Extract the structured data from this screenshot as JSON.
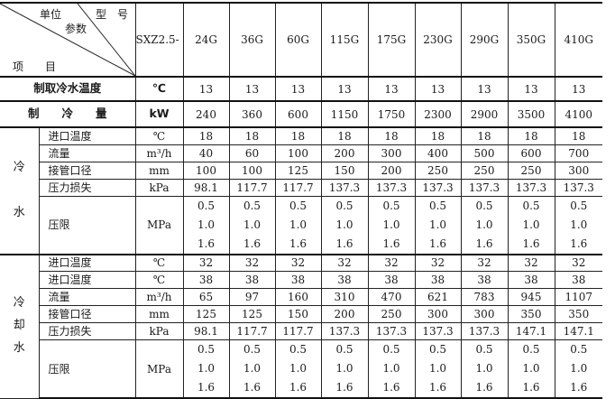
{
  "header": {
    "unit_label": "单位",
    "model_label": "型　号",
    "param_label": "参数",
    "item_label": "项　　目",
    "series_prefix": "SXZ2.5-",
    "models": [
      "24G",
      "36G",
      "60G",
      "115G",
      "175G",
      "230G",
      "290G",
      "350G",
      "410G"
    ]
  },
  "rows_top": [
    {
      "param": "制取冷水温度",
      "unit": "℃",
      "values": [
        "13",
        "13",
        "13",
        "13",
        "13",
        "13",
        "13",
        "13",
        "13"
      ]
    },
    {
      "param": "制　　冷　　量",
      "unit": "kW",
      "values": [
        "240",
        "360",
        "600",
        "1150",
        "1750",
        "2300",
        "2900",
        "3500",
        "4100"
      ]
    }
  ],
  "groups": [
    {
      "label": "冷\n\n水",
      "rows": [
        {
          "param": "进口温度",
          "unit": "℃",
          "values": [
            "18",
            "18",
            "18",
            "18",
            "18",
            "18",
            "18",
            "18",
            "18"
          ]
        },
        {
          "param": "流量",
          "unit": "m³/h",
          "values": [
            "40",
            "60",
            "100",
            "200",
            "300",
            "400",
            "500",
            "600",
            "700"
          ]
        },
        {
          "param": "接管口径",
          "unit": "mm",
          "values": [
            "100",
            "100",
            "125",
            "150",
            "200",
            "250",
            "250",
            "250",
            "300"
          ]
        },
        {
          "param": "压力损失",
          "unit": "kPa",
          "values": [
            "98.1",
            "117.7",
            "117.7",
            "137.3",
            "137.3",
            "137.3",
            "137.3",
            "137.3",
            "137.3"
          ]
        },
        {
          "param": "压限",
          "unit": "MPa",
          "values": [
            "0.5\n1.0\n1.6",
            "0.5\n1.0\n1.6",
            "0.5\n1.0\n1.6",
            "0.5\n1.0\n1.6",
            "0.5\n1.0\n1.6",
            "0.5\n1.0\n1.6",
            "0.5\n1.0\n1.6",
            "0.5\n1.0\n1.6",
            "0.5\n1.0\n1.6"
          ]
        }
      ]
    },
    {
      "label": "冷\n却\n水",
      "rows": [
        {
          "param": "进口温度",
          "unit": "℃",
          "values": [
            "32",
            "32",
            "32",
            "32",
            "32",
            "32",
            "32",
            "32",
            "32"
          ]
        },
        {
          "param": "进口温度",
          "unit": "℃",
          "values": [
            "38",
            "38",
            "38",
            "38",
            "38",
            "38",
            "38",
            "38",
            "38"
          ]
        },
        {
          "param": "流量",
          "unit": "m³/h",
          "values": [
            "65",
            "97",
            "160",
            "310",
            "470",
            "621",
            "783",
            "945",
            "1107"
          ]
        },
        {
          "param": "接管口径",
          "unit": "mm",
          "values": [
            "125",
            "125",
            "150",
            "200",
            "250",
            "300",
            "300",
            "350",
            "350"
          ]
        },
        {
          "param": "压力损失",
          "unit": "kPa",
          "values": [
            "98.1",
            "117.7",
            "117.7",
            "137.3",
            "137.3",
            "137.3",
            "137.3",
            "147.1",
            "147.1"
          ]
        },
        {
          "param": "压限",
          "unit": "MPa",
          "values": [
            "0.5\n1.0\n1.6",
            "0.5\n1.0\n1.6",
            "0.5\n1.0\n1.6",
            "0.5\n1.0\n1.6",
            "0.5\n1.0\n1.6",
            "0.5\n1.0\n1.6",
            "0.5\n1.0\n1.6",
            "0.5\n1.0\n1.6",
            "0.5\n1.0\n1.6"
          ]
        }
      ]
    }
  ]
}
